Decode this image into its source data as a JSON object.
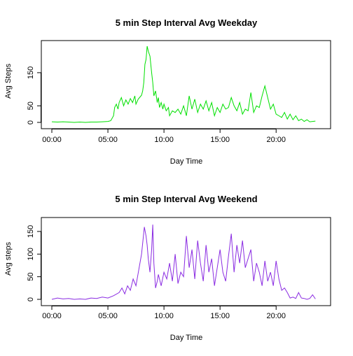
{
  "chart_data": [
    {
      "type": "line",
      "title": "5 min Step Interval Avg Weekday",
      "xlabel": "Day Time",
      "ylabel": "Avg Steps",
      "x_ticks": [
        "00:00",
        "05:00",
        "10:00",
        "15:00",
        "20:00"
      ],
      "x_tick_hours": [
        0,
        5,
        10,
        15,
        20
      ],
      "y_ticks": [
        0,
        50,
        150
      ],
      "xlim": [
        0,
        23.92
      ],
      "ylim": [
        0,
        230
      ],
      "line_color": "#00e000",
      "series": [
        {
          "x": [
            0,
            0.5,
            1,
            1.5,
            2,
            2.5,
            3,
            3.5,
            4,
            4.5,
            5,
            5.25,
            5.5,
            5.6,
            5.75,
            5.9,
            6.0,
            6.2,
            6.4,
            6.6,
            6.8,
            7.0,
            7.2,
            7.4,
            7.5,
            7.7,
            7.9,
            8.0,
            8.1,
            8.2,
            8.3,
            8.4,
            8.5,
            8.6,
            8.75,
            8.9,
            9.0,
            9.1,
            9.25,
            9.4,
            9.5,
            9.6,
            9.75,
            9.9,
            10.0,
            10.2,
            10.4,
            10.5,
            10.75,
            11.0,
            11.25,
            11.5,
            11.75,
            12.0,
            12.25,
            12.5,
            12.75,
            13.0,
            13.25,
            13.5,
            13.75,
            14.0,
            14.25,
            14.5,
            14.75,
            15.0,
            15.25,
            15.5,
            15.75,
            16.0,
            16.25,
            16.5,
            16.75,
            17.0,
            17.25,
            17.5,
            17.75,
            18.0,
            18.25,
            18.5,
            18.75,
            19.0,
            19.25,
            19.5,
            19.75,
            20.0,
            20.25,
            20.5,
            20.75,
            21.0,
            21.25,
            21.5,
            21.75,
            22.0,
            22.25,
            22.5,
            22.75,
            23.0,
            23.25,
            23.5
          ],
          "y": [
            2,
            1,
            2,
            1,
            0,
            1,
            0,
            1,
            1,
            2,
            3,
            5,
            20,
            45,
            55,
            40,
            60,
            75,
            50,
            68,
            55,
            72,
            60,
            80,
            55,
            70,
            78,
            82,
            95,
            120,
            175,
            190,
            230,
            215,
            200,
            150,
            120,
            80,
            95,
            60,
            75,
            45,
            60,
            40,
            55,
            35,
            45,
            20,
            35,
            30,
            40,
            25,
            50,
            20,
            80,
            40,
            70,
            30,
            55,
            40,
            65,
            35,
            60,
            20,
            45,
            30,
            55,
            40,
            45,
            75,
            50,
            35,
            60,
            25,
            40,
            35,
            90,
            30,
            50,
            45,
            80,
            110,
            75,
            40,
            55,
            25,
            20,
            15,
            30,
            10,
            25,
            8,
            20,
            5,
            10,
            3,
            8,
            2,
            3,
            4
          ]
        }
      ]
    },
    {
      "type": "line",
      "title": "5 min Step Interval Avg Weekend",
      "xlabel": "Day Time",
      "ylabel": "Avg steps",
      "x_ticks": [
        "00:00",
        "05:00",
        "10:00",
        "15:00",
        "20:00"
      ],
      "x_tick_hours": [
        0,
        5,
        10,
        15,
        20
      ],
      "y_ticks": [
        0,
        50,
        100,
        150
      ],
      "xlim": [
        0,
        23.92
      ],
      "ylim": [
        0,
        170
      ],
      "line_color": "#8a2be2",
      "series": [
        {
          "x": [
            0,
            0.5,
            1,
            1.5,
            2,
            2.5,
            3,
            3.5,
            4,
            4.5,
            5,
            5.5,
            6.0,
            6.25,
            6.5,
            6.75,
            7.0,
            7.25,
            7.5,
            7.75,
            8.0,
            8.25,
            8.4,
            8.5,
            8.6,
            8.75,
            8.9,
            9.0,
            9.1,
            9.25,
            9.4,
            9.5,
            9.75,
            10.0,
            10.25,
            10.5,
            10.75,
            11.0,
            11.25,
            11.5,
            11.75,
            12.0,
            12.25,
            12.5,
            12.75,
            13.0,
            13.25,
            13.5,
            13.75,
            14.0,
            14.25,
            14.5,
            14.75,
            15.0,
            15.25,
            15.5,
            15.75,
            16.0,
            16.25,
            16.5,
            16.75,
            17.0,
            17.25,
            17.5,
            17.75,
            18.0,
            18.25,
            18.5,
            18.75,
            19.0,
            19.25,
            19.5,
            19.75,
            20.0,
            20.25,
            20.5,
            20.75,
            21.0,
            21.25,
            21.5,
            21.75,
            22.0,
            22.25,
            22.5,
            22.75,
            23.0,
            23.25,
            23.5
          ],
          "y": [
            0,
            3,
            1,
            2,
            0,
            1,
            0,
            3,
            2,
            5,
            3,
            8,
            15,
            25,
            12,
            30,
            20,
            45,
            30,
            65,
            100,
            160,
            140,
            120,
            90,
            60,
            110,
            165,
            80,
            25,
            40,
            55,
            30,
            60,
            45,
            80,
            40,
            100,
            35,
            60,
            50,
            140,
            70,
            110,
            45,
            130,
            80,
            40,
            120,
            60,
            90,
            30,
            70,
            110,
            60,
            40,
            95,
            145,
            60,
            120,
            80,
            130,
            70,
            90,
            110,
            40,
            80,
            60,
            30,
            85,
            40,
            60,
            30,
            85,
            45,
            20,
            25,
            15,
            3,
            5,
            2,
            15,
            3,
            2,
            0,
            2,
            10,
            1
          ]
        }
      ]
    }
  ]
}
